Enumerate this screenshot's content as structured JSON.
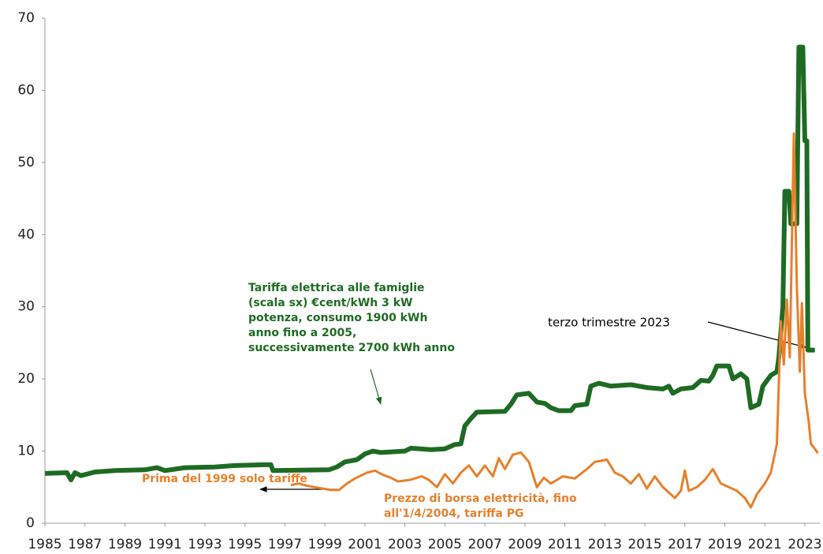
{
  "chart_data": {
    "type": "line",
    "xlim": [
      1985,
      2023.75
    ],
    "xticks": [
      1985,
      1987,
      1989,
      1991,
      1993,
      1995,
      1997,
      1999,
      2001,
      2003,
      2005,
      2007,
      2009,
      2011,
      2013,
      2015,
      2017,
      2019,
      2021,
      2023
    ],
    "ylim": [
      0,
      70
    ],
    "yticks": [
      0,
      10,
      20,
      30,
      40,
      50,
      60,
      70
    ],
    "series": [
      {
        "color": "#1e6b23",
        "x": [
          1985,
          1986.1,
          1986.3,
          1986.5,
          1986.8,
          1987.5,
          1988.5,
          1990,
          1990.6,
          1991,
          1992,
          1993.5,
          1994.5,
          1996,
          1996.3,
          1996.4,
          1999.2,
          1999.6,
          2000,
          2000.6,
          2001,
          2001.4,
          2001.8,
          2003,
          2003.3,
          2004.3,
          2005,
          2005.5,
          2005.8,
          2006,
          2006.3,
          2006.6,
          2008,
          2008.3,
          2008.6,
          2009.2,
          2009.6,
          2010,
          2010.3,
          2010.7,
          2011.3,
          2011.5,
          2012.1,
          2012.3,
          2012.7,
          2013.3,
          2014.3,
          2015.1,
          2015.9,
          2016.2,
          2016.4,
          2016.8,
          2017.4,
          2017.8,
          2018.2,
          2018.4,
          2018.6,
          2019.2,
          2019.4,
          2019.8,
          2020.1,
          2020.3,
          2020.7,
          2020.9,
          2021.3,
          2021.6,
          2021.7,
          2021.9,
          2022,
          2022.2,
          2022.3,
          2022.6,
          2022.7,
          2022.9,
          2023,
          2023.1,
          2023.15,
          2023.5
        ],
        "values": [
          6.9,
          7.0,
          6.0,
          7.0,
          6.6,
          7.1,
          7.3,
          7.4,
          7.7,
          7.3,
          7.7,
          7.8,
          8.0,
          8.1,
          8.1,
          7.3,
          7.4,
          7.8,
          8.5,
          8.8,
          9.6,
          10.0,
          9.8,
          10.0,
          10.4,
          10.2,
          10.3,
          10.9,
          11.0,
          13.5,
          14.5,
          15.4,
          15.5,
          16.5,
          17.8,
          18.0,
          16.8,
          16.6,
          16.0,
          15.6,
          15.6,
          16.3,
          16.5,
          19.0,
          19.4,
          19.0,
          19.2,
          18.8,
          18.6,
          19.0,
          18.0,
          18.6,
          18.8,
          19.8,
          19.7,
          20.5,
          21.8,
          21.8,
          20.0,
          20.7,
          20.0,
          16.0,
          16.5,
          19.0,
          20.5,
          21.0,
          23.0,
          30.0,
          46.0,
          46.0,
          41.5,
          41.5,
          66.0,
          66.0,
          53.0,
          53.0,
          24.0,
          24.0
        ]
      },
      {
        "color": "#e6802b",
        "x": [
          1997.3,
          1997.7,
          1998.1,
          1998.5,
          1998.9,
          1999.3,
          1999.7,
          2000.1,
          2000.5,
          2001.1,
          2001.5,
          2001.9,
          2002.3,
          2002.65,
          2003.25,
          2003.85,
          2004.2,
          2004.6,
          2005,
          2005.4,
          2005.8,
          2006.2,
          2006.6,
          2007,
          2007.4,
          2007.7,
          2008,
          2008.4,
          2008.8,
          2009.2,
          2009.6,
          2009.95,
          2010.3,
          2010.9,
          2011.5,
          2012.1,
          2012.5,
          2013.1,
          2013.5,
          2013.9,
          2014.3,
          2014.7,
          2015.1,
          2015.5,
          2015.9,
          2016.3,
          2016.5,
          2016.8,
          2017.0,
          2017.2,
          2017.6,
          2018.0,
          2018.4,
          2018.8,
          2019.2,
          2019.6,
          2020.0,
          2020.3,
          2020.6,
          2021,
          2021.3,
          2021.6,
          2021.8,
          2021.95,
          2022.1,
          2022.25,
          2022.45,
          2022.6,
          2022.75,
          2022.85,
          2023,
          2023.2,
          2023.3,
          2023.45,
          2023.65
        ],
        "values": [
          5.3,
          5.5,
          5.2,
          5.0,
          4.8,
          4.6,
          4.6,
          5.5,
          6.2,
          7.0,
          7.3,
          6.7,
          6.3,
          5.8,
          6.0,
          6.5,
          6.0,
          5.0,
          6.8,
          5.5,
          7.0,
          8.0,
          6.5,
          8.0,
          6.5,
          9.0,
          7.5,
          9.5,
          9.8,
          8.5,
          5.0,
          6.3,
          5.5,
          6.5,
          6.2,
          7.5,
          8.5,
          8.8,
          7.0,
          6.5,
          5.5,
          6.8,
          4.8,
          6.5,
          5.0,
          4.0,
          3.5,
          4.5,
          7.3,
          4.5,
          5.0,
          6.0,
          7.5,
          5.5,
          5.0,
          4.5,
          3.5,
          2.2,
          4.0,
          5.5,
          7.0,
          11.0,
          28.0,
          22.0,
          31.0,
          23.0,
          54.0,
          33.0,
          21.0,
          30.5,
          18.0,
          14.0,
          11.0,
          10.5,
          9.7
        ]
      }
    ],
    "annotations": [
      {
        "lines": [
          "Tariffa elettrica alle famiglie",
          "(scala sx) €cent/kWh 3 kW",
          "potenza, consumo 1900 kWh",
          "anno fino a 2005,",
          "successivamente 2700 kWh anno"
        ],
        "color": "#1e6b23"
      },
      {
        "lines": [
          "terzo trimestre 2023"
        ],
        "color": "#000000"
      },
      {
        "lines": [
          "Prima del 1999 solo tariffe"
        ],
        "color": "#e6802b"
      },
      {
        "lines": [
          "Prezzo di borsa elettricità, fino",
          "all'1/4/2004, tariffa PG"
        ],
        "color": "#e6802b"
      }
    ]
  }
}
